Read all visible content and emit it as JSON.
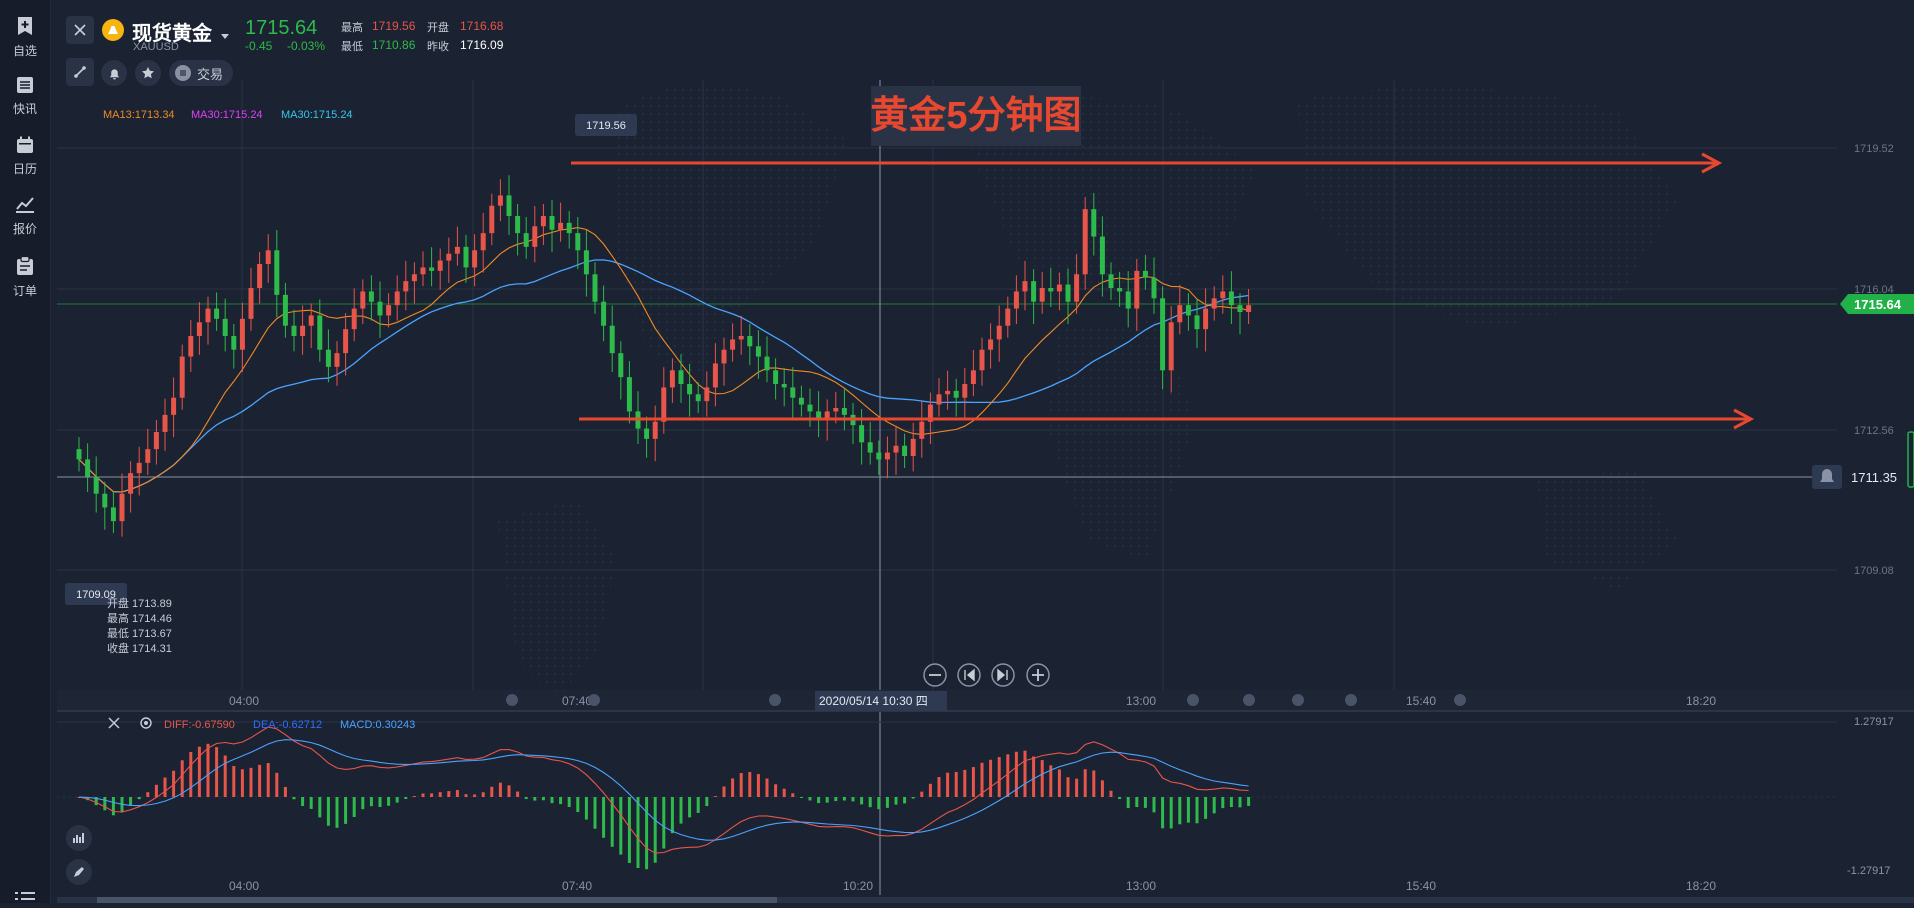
{
  "sidebar": {
    "items": [
      {
        "label": "自选",
        "icon": "bookmark-add-icon"
      },
      {
        "label": "快讯",
        "icon": "news-list-icon"
      },
      {
        "label": "日历",
        "icon": "calendar-icon"
      },
      {
        "label": "报价",
        "icon": "trend-line-icon"
      },
      {
        "label": "订单",
        "icon": "clipboard-icon"
      }
    ]
  },
  "header": {
    "symbol_name": "现货黄金",
    "symbol_code": "XAUUSD",
    "last_price": "1715.64",
    "change": "-0.45",
    "change_pct": "-0.03%",
    "high_label": "最高",
    "high_value": "1719.56",
    "open_label": "开盘",
    "open_value": "1716.68",
    "low_label": "最低",
    "low_value": "1710.86",
    "prev_close_label": "昨收",
    "prev_close_value": "1716.09",
    "trade_label": "交易"
  },
  "indicators": {
    "ma13": "MA13:1713.34",
    "ma30a": "MA30:1715.24",
    "ma30b": "MA30:1715.24"
  },
  "chart_title": "黄金5分钟图",
  "price_axis": {
    "ticks": [
      "1719.52",
      "1716.04",
      "1712.56",
      "1709.08"
    ],
    "last_price_tag": "1715.64",
    "alert_price": "1711.35"
  },
  "markers": {
    "max_label": "1719.56",
    "min_label": "1709.09"
  },
  "ohlc_box": {
    "open": "开盘 1713.89",
    "high": "最高 1714.46",
    "low": "最低 1713.67",
    "close": "收盘 1714.31"
  },
  "time_axis": {
    "ticks": [
      "04:00",
      "07:40",
      "13:00",
      "15:40",
      "18:20"
    ],
    "crosshair_label": "2020/05/14 10:30 四"
  },
  "macd": {
    "diff_label": "DIFF:-0.67590",
    "dea_label": "DEA:-0.62712",
    "macd_label": "MACD:0.30243",
    "axis_top": "1.27917",
    "axis_bottom": "-1.27917",
    "time_ticks": [
      "04:00",
      "07:40",
      "10:20",
      "13:00",
      "15:40",
      "18:20"
    ]
  },
  "colors": {
    "up": "#e8554a",
    "down": "#2dbb4b",
    "ma13": "#f08a24",
    "ma30_magenta": "#e040fb",
    "ma30_cyan": "#34c7f0",
    "ma_blue": "#4aa3ff",
    "arrow": "#e8482f",
    "background": "#1b2231"
  },
  "chart_data": {
    "type": "candlestick",
    "interval": "5 minute",
    "title": "黄金5分钟图",
    "ylim": [
      1707.3,
      1721.3
    ],
    "x_ticks": [
      "04:00",
      "07:40",
      "13:00",
      "15:40",
      "18:20"
    ],
    "y_ticks": [
      1719.52,
      1716.04,
      1712.56,
      1709.08
    ],
    "reference_lines": {
      "resistance": 1719.52,
      "support": 1712.76,
      "alert": 1711.35,
      "last": 1715.64
    },
    "close_path": [
      1711.4,
      1710.9,
      1710.4,
      1710.0,
      1709.6,
      1710.4,
      1711.0,
      1711.3,
      1711.7,
      1712.2,
      1712.7,
      1713.2,
      1714.4,
      1715.0,
      1715.4,
      1715.8,
      1715.5,
      1715.0,
      1714.6,
      1715.5,
      1716.4,
      1717.1,
      1717.5,
      1716.2,
      1715.3,
      1715.0,
      1715.3,
      1715.6,
      1714.6,
      1714.1,
      1714.5,
      1715.2,
      1715.8,
      1716.3,
      1716.0,
      1715.6,
      1715.9,
      1716.3,
      1716.6,
      1716.8,
      1717.0,
      1716.9,
      1717.2,
      1717.4,
      1717.6,
      1717.0,
      1717.5,
      1718.0,
      1718.8,
      1719.1,
      1718.5,
      1718.0,
      1717.6,
      1718.2,
      1718.5,
      1718.1,
      1718.3,
      1718.0,
      1717.5,
      1716.8,
      1716.0,
      1715.3,
      1714.5,
      1713.8,
      1712.8,
      1712.3,
      1712.0,
      1712.5,
      1713.5,
      1714.0,
      1713.6,
      1713.3,
      1713.1,
      1713.5,
      1714.2,
      1714.6,
      1714.9,
      1715.0,
      1714.7,
      1714.4,
      1714.0,
      1713.6,
      1713.5,
      1713.2,
      1713.0,
      1712.8,
      1712.6,
      1712.8,
      1712.9,
      1712.7,
      1712.4,
      1711.9,
      1711.6,
      1711.4,
      1711.6,
      1711.8,
      1711.5,
      1712.0,
      1712.5,
      1713.0,
      1713.3,
      1713.4,
      1713.2,
      1713.6,
      1714.0,
      1714.6,
      1714.9,
      1715.3,
      1715.8,
      1716.3,
      1716.6,
      1716.0,
      1716.4,
      1716.3,
      1716.5,
      1716.0,
      1716.8,
      1718.7,
      1717.9,
      1716.8,
      1716.4,
      1716.3,
      1715.8,
      1716.9,
      1716.7,
      1716.1,
      1714.0,
      1715.4,
      1715.9,
      1715.6,
      1715.2,
      1715.8,
      1716.1,
      1716.3,
      1715.9,
      1715.7,
      1715.9
    ]
  }
}
